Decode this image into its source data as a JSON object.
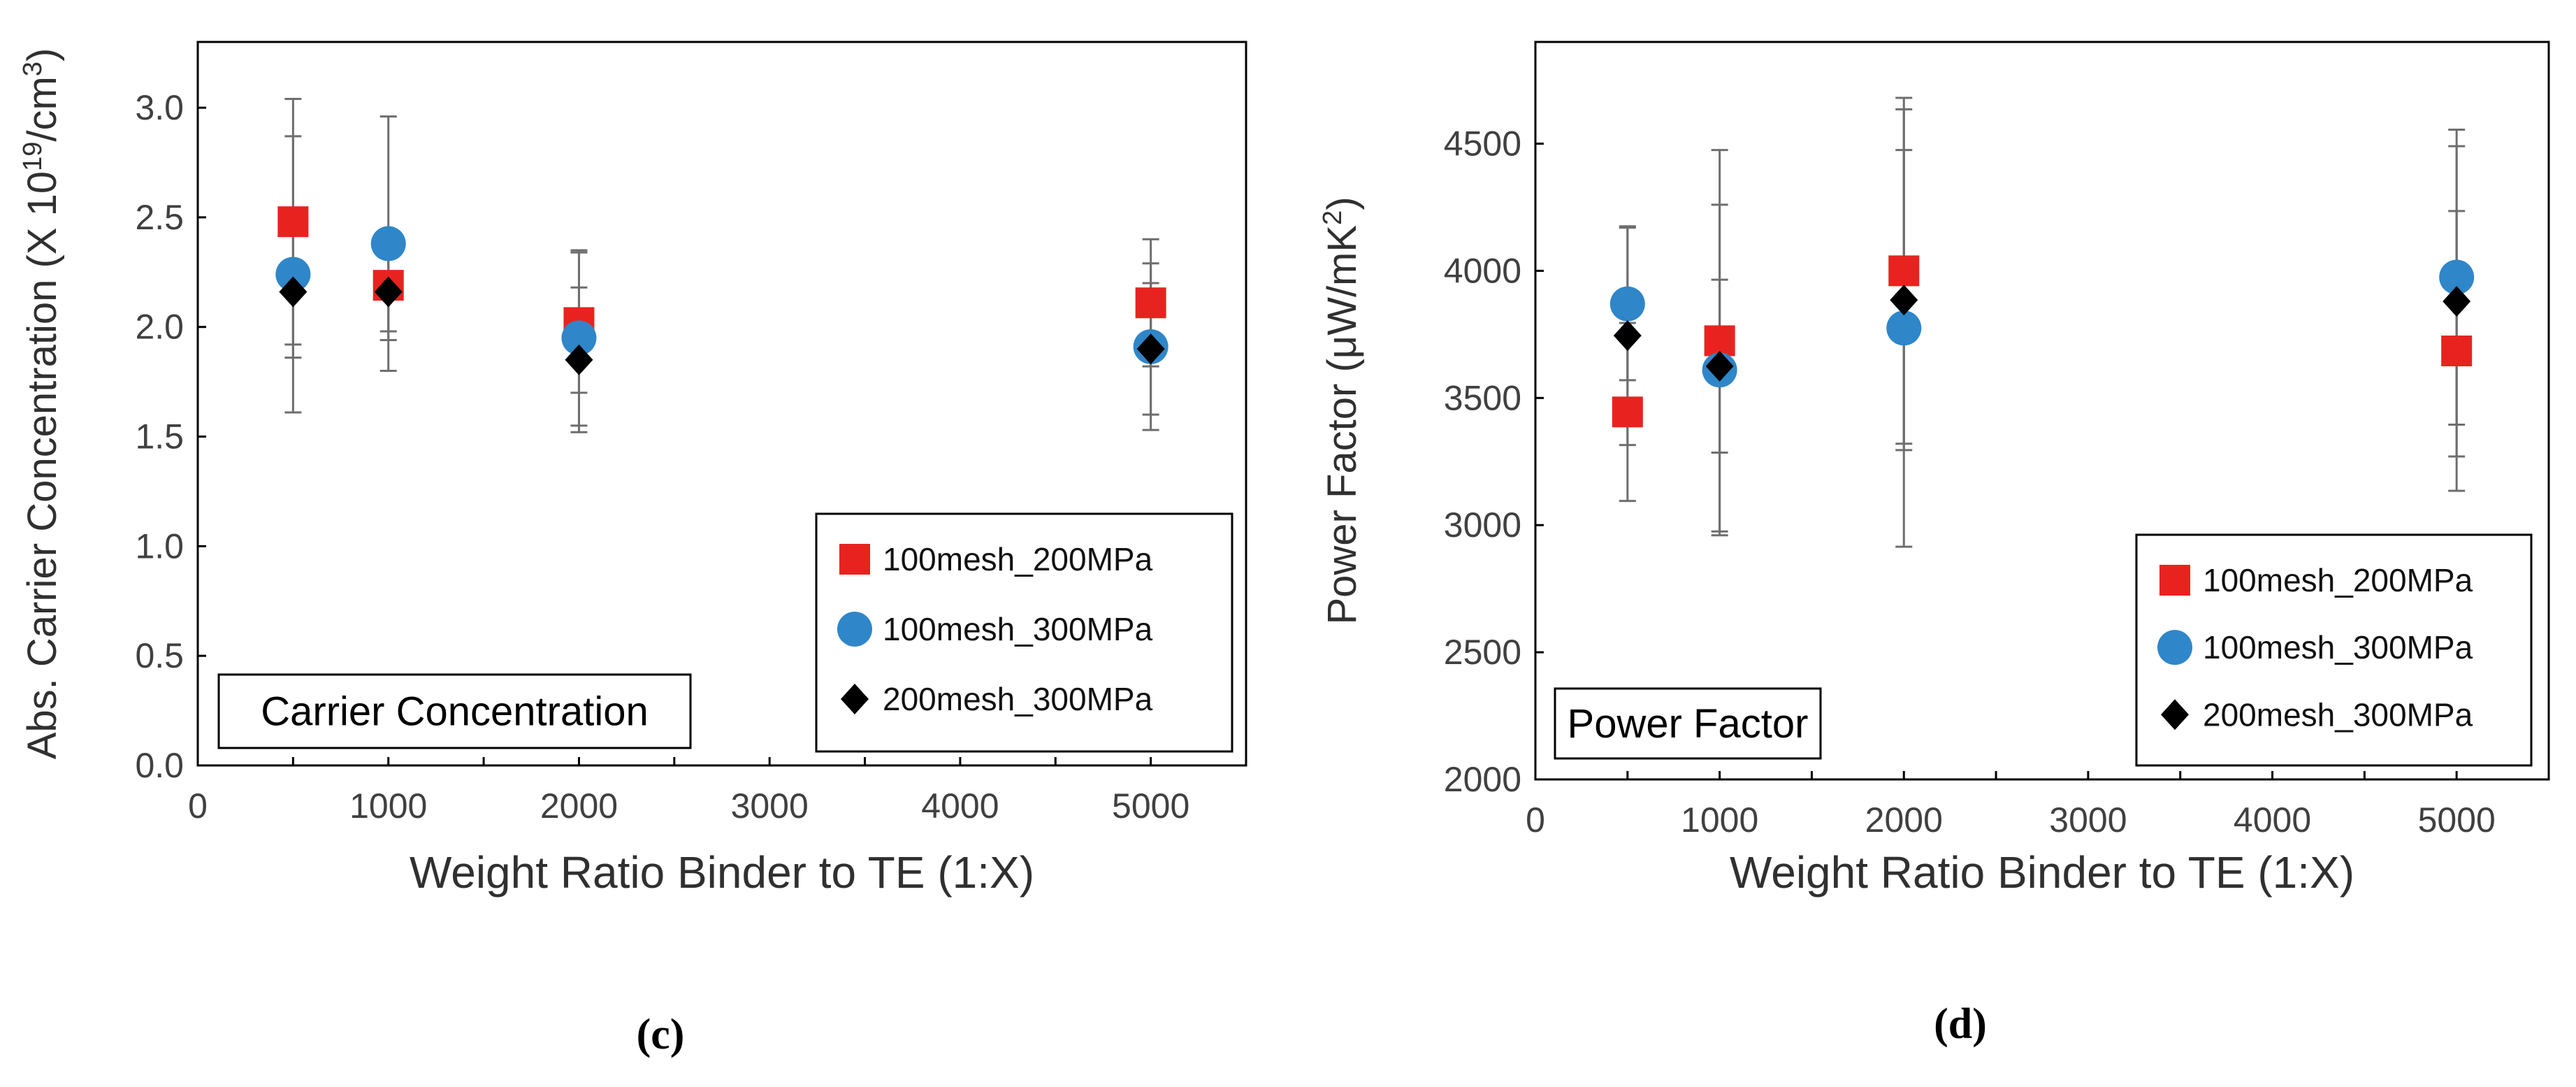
{
  "colors": {
    "red": "#e8231f",
    "blue": "#2f86c8",
    "black": "#000000",
    "errorbar": "#6e6e6e",
    "axis": "#000000"
  },
  "chart_data": [
    {
      "type": "scatter",
      "panel_label": "(c)",
      "box_label": "Carrier Concentration",
      "xlabel": "Weight Ratio Binder to TE (1:X)",
      "ylabel": {
        "prefix": "Abs. Carrier Concentration (X 10",
        "sup1": "19",
        "mid": "/cm",
        "sup2": "3",
        "suffix": ")"
      },
      "xlim": [
        0,
        5500
      ],
      "ylim": [
        0.0,
        3.3
      ],
      "xticks": [
        0,
        1000,
        2000,
        3000,
        4000,
        5000
      ],
      "xtick_labels": [
        "0",
        "1000",
        "2000",
        "3000",
        "4000",
        "5000"
      ],
      "yticks": [
        0.0,
        0.5,
        1.0,
        1.5,
        2.0,
        2.5,
        3.0
      ],
      "ytick_labels": [
        "0.0",
        "0.5",
        "1.0",
        "1.5",
        "2.0",
        "2.5",
        "3.0"
      ],
      "x": [
        500,
        1000,
        2000,
        5000
      ],
      "series": [
        {
          "name": "100mesh_200MPa",
          "marker": "square",
          "color": "#e8231f",
          "values": [
            2.48,
            2.19,
            2.02,
            2.11
          ],
          "errors": [
            0.56,
            0.25,
            0.32,
            0.29
          ]
        },
        {
          "name": "100mesh_300MPa",
          "marker": "circle",
          "color": "#2f86c8",
          "values": [
            2.24,
            2.38,
            1.95,
            1.91
          ],
          "errors": [
            0.63,
            0.58,
            0.4,
            0.38
          ]
        },
        {
          "name": "200mesh_300MPa",
          "marker": "diamond",
          "color": "#000000",
          "values": [
            2.16,
            2.16,
            1.85,
            1.9
          ],
          "errors": [
            0.3,
            0.18,
            0.33,
            0.3
          ]
        }
      ]
    },
    {
      "type": "scatter",
      "panel_label": "(d)",
      "box_label": "Power Factor",
      "xlabel": "Weight Ratio Binder to TE (1:X)",
      "ylabel": {
        "prefix": "Power Factor (μW/mK",
        "sup1": "2",
        "mid": "",
        "sup2": "",
        "suffix": ")"
      },
      "xlim": [
        0,
        5500
      ],
      "ylim": [
        2000,
        4900
      ],
      "xticks": [
        0,
        1000,
        2000,
        3000,
        4000,
        5000
      ],
      "xtick_labels": [
        "0",
        "1000",
        "2000",
        "3000",
        "4000",
        "5000"
      ],
      "yticks": [
        2000,
        2500,
        3000,
        3500,
        4000,
        4500
      ],
      "ytick_labels": [
        "2000",
        "2500",
        "3000",
        "3500",
        "4000",
        "4500"
      ],
      "x": [
        500,
        1000,
        2000,
        5000
      ],
      "series": [
        {
          "name": "100mesh_200MPa",
          "marker": "square",
          "color": "#e8231f",
          "values": [
            3445,
            3725,
            4000,
            3685
          ],
          "errors": [
            350,
            750,
            680,
            550
          ]
        },
        {
          "name": "100mesh_300MPa",
          "marker": "circle",
          "color": "#2f86c8",
          "values": [
            3870,
            3610,
            3775,
            3975
          ],
          "errors": [
            300,
            650,
            860,
            580
          ]
        },
        {
          "name": "200mesh_300MPa",
          "marker": "diamond",
          "color": "#000000",
          "values": [
            3745,
            3625,
            3885,
            3880
          ],
          "errors": [
            430,
            340,
            590,
            610
          ]
        }
      ]
    }
  ]
}
